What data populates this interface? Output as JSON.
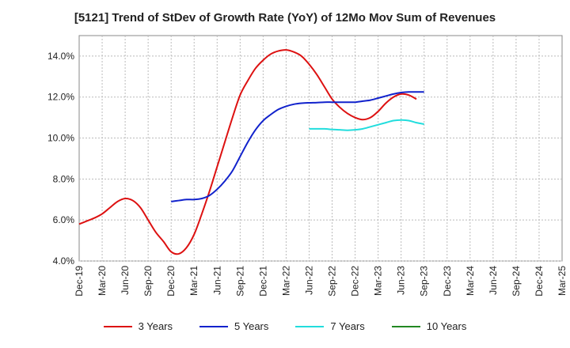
{
  "chart_data": {
    "type": "line",
    "title": "[5121]  Trend of StDev of Growth Rate (YoY) of 12Mo Mov Sum of Revenues",
    "xlabel": "",
    "ylabel": "",
    "ylim": [
      4.0,
      15.0
    ],
    "yticks": [
      "4.0%",
      "6.0%",
      "8.0%",
      "10.0%",
      "12.0%",
      "14.0%"
    ],
    "ytick_values": [
      4,
      6,
      8,
      10,
      12,
      14
    ],
    "x_tick_labels": [
      "Dec-19",
      "Mar-20",
      "Jun-20",
      "Sep-20",
      "Dec-20",
      "Mar-21",
      "Jun-21",
      "Sep-21",
      "Dec-21",
      "Mar-22",
      "Jun-22",
      "Sep-22",
      "Dec-22",
      "Mar-23",
      "Jun-23",
      "Sep-23",
      "Dec-23",
      "Mar-24",
      "Jun-24",
      "Sep-24",
      "Dec-24",
      "Mar-25"
    ],
    "grid": true,
    "legend_position": "bottom",
    "series": [
      {
        "name": "3 Years",
        "color": "#dd1111",
        "start_index": 0,
        "values": [
          5.8,
          5.95,
          6.1,
          6.3,
          6.6,
          6.9,
          7.05,
          6.95,
          6.6,
          6.0,
          5.4,
          4.95,
          4.45,
          4.35,
          4.65,
          5.3,
          6.3,
          7.4,
          8.6,
          9.8,
          11.0,
          12.1,
          12.8,
          13.4,
          13.8,
          14.1,
          14.25,
          14.3,
          14.2,
          14.0,
          13.6,
          13.1,
          12.5,
          11.9,
          11.5,
          11.2,
          11.0,
          10.9,
          11.0,
          11.3,
          11.7,
          12.0,
          12.15,
          12.1,
          11.9
        ]
      },
      {
        "name": "5 Years",
        "color": "#1122cc",
        "start_index": 12,
        "values": [
          6.9,
          6.95,
          7.0,
          7.0,
          7.05,
          7.2,
          7.5,
          7.9,
          8.4,
          9.1,
          9.8,
          10.4,
          10.85,
          11.15,
          11.4,
          11.55,
          11.65,
          11.7,
          11.72,
          11.73,
          11.75,
          11.75,
          11.75,
          11.75,
          11.75,
          11.8,
          11.85,
          11.95,
          12.05,
          12.15,
          12.22,
          12.25,
          12.25,
          12.25
        ]
      },
      {
        "name": "7 Years",
        "color": "#22dddd",
        "start_index": 30,
        "values": [
          10.45,
          10.45,
          10.45,
          10.42,
          10.4,
          10.38,
          10.4,
          10.45,
          10.55,
          10.65,
          10.75,
          10.85,
          10.88,
          10.85,
          10.75,
          10.68
        ]
      },
      {
        "name": "10 Years",
        "color": "#228822",
        "start_index": 0,
        "values": []
      }
    ]
  },
  "legend": {
    "items": [
      {
        "label": "3 Years",
        "color": "#dd1111"
      },
      {
        "label": "5 Years",
        "color": "#1122cc"
      },
      {
        "label": "7 Years",
        "color": "#22dddd"
      },
      {
        "label": "10 Years",
        "color": "#228822"
      }
    ]
  }
}
